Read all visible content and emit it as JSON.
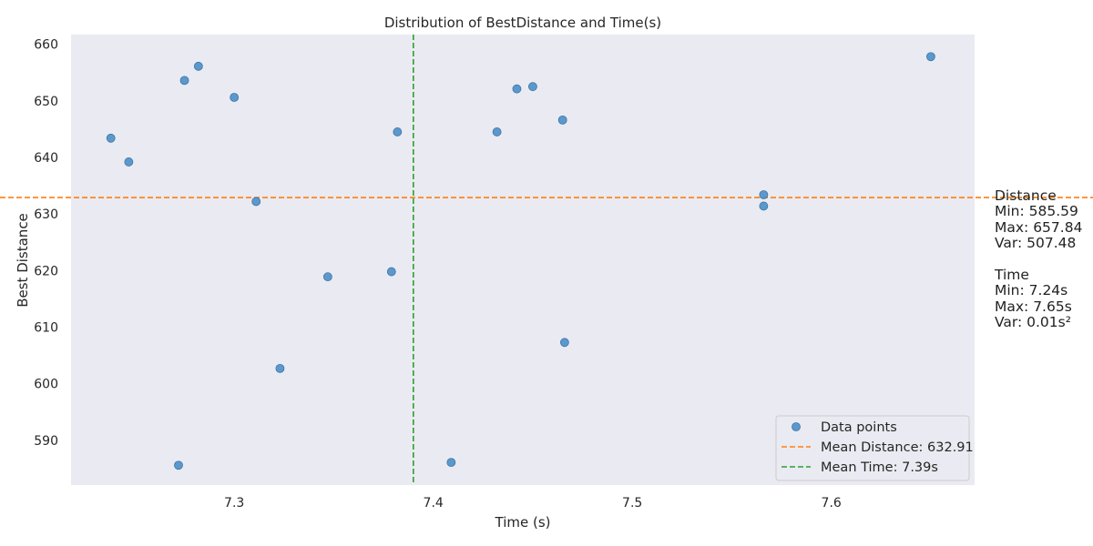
{
  "chart_data": {
    "type": "scatter",
    "title": "Distribution of BestDistance and Time(s)",
    "xlabel": "Time (s)",
    "ylabel": "Best Distance",
    "xlim": [
      7.218,
      7.672
    ],
    "ylim": [
      582.1,
      661.7
    ],
    "xticks": [
      7.3,
      7.4,
      7.5,
      7.6
    ],
    "yticks": [
      590,
      600,
      610,
      620,
      630,
      640,
      650,
      660
    ],
    "grid": false,
    "legend_position": "lower-right",
    "series": [
      {
        "name": "Data points",
        "color": "#4c8fc6",
        "points": [
          {
            "x": 7.238,
            "y": 643.4
          },
          {
            "x": 7.247,
            "y": 639.2
          },
          {
            "x": 7.272,
            "y": 585.6
          },
          {
            "x": 7.275,
            "y": 653.6
          },
          {
            "x": 7.282,
            "y": 656.1
          },
          {
            "x": 7.3,
            "y": 650.6
          },
          {
            "x": 7.311,
            "y": 632.2
          },
          {
            "x": 7.323,
            "y": 602.7
          },
          {
            "x": 7.347,
            "y": 618.9
          },
          {
            "x": 7.379,
            "y": 619.8
          },
          {
            "x": 7.382,
            "y": 644.5
          },
          {
            "x": 7.409,
            "y": 586.1
          },
          {
            "x": 7.432,
            "y": 644.5
          },
          {
            "x": 7.442,
            "y": 652.1
          },
          {
            "x": 7.45,
            "y": 652.5
          },
          {
            "x": 7.465,
            "y": 646.6
          },
          {
            "x": 7.466,
            "y": 607.3
          },
          {
            "x": 7.566,
            "y": 633.4
          },
          {
            "x": 7.566,
            "y": 631.4
          },
          {
            "x": 7.65,
            "y": 657.8
          }
        ]
      }
    ],
    "reference_lines": [
      {
        "name": "Mean Distance: 632.91",
        "orientation": "horizontal",
        "value": 632.91,
        "color": "#ff7f0e",
        "style": "dashed"
      },
      {
        "name": "Mean Time: 7.39s",
        "orientation": "vertical",
        "value": 7.39,
        "color": "#2ca02c",
        "style": "dashed"
      }
    ],
    "plot_background": "#eaeaf2"
  },
  "side_stats": [
    "Distance",
    "Min: 585.59",
    "Max: 657.84",
    "Var: 507.48",
    "",
    "Time",
    "Min: 7.24s",
    "Max: 7.65s",
    "Var: 0.01s²"
  ]
}
